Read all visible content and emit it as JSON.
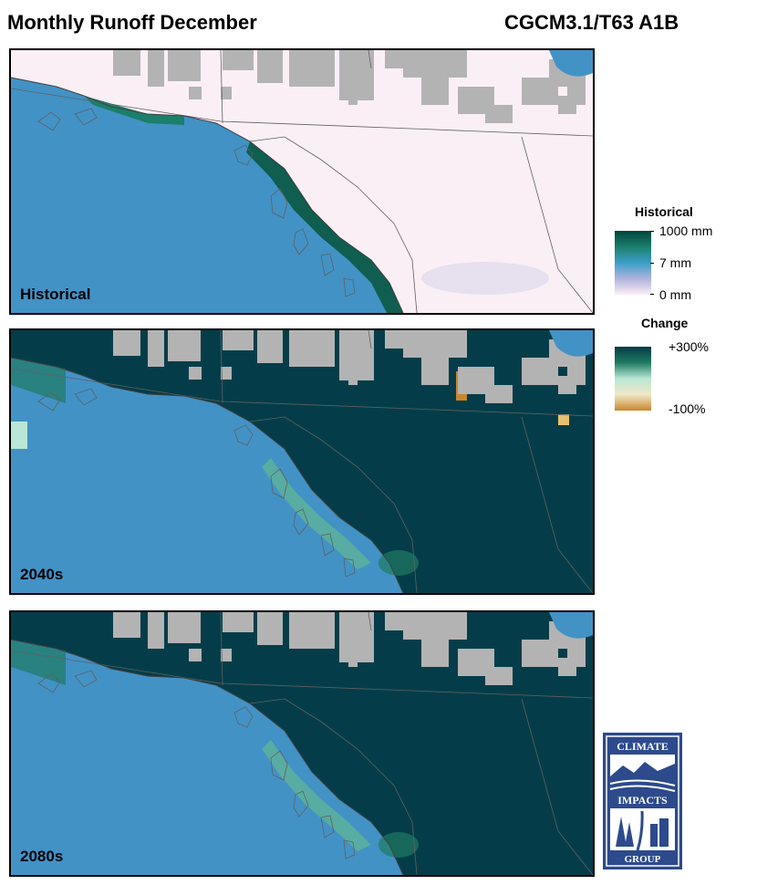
{
  "header": {
    "title": "Monthly Runoff December",
    "model": "CGCM3.1/T63 A1B"
  },
  "panels": [
    {
      "label": "Historical",
      "mode": "historical"
    },
    {
      "label": "2040s",
      "mode": "future"
    },
    {
      "label": "2080s",
      "mode": "future"
    }
  ],
  "legend": {
    "historical": {
      "title": "Historical",
      "max_label": "1000 mm",
      "mid_label": "7 mm",
      "min_label": "0 mm",
      "colors": [
        "#00443c",
        "#1b7f6b",
        "#3b9fc8",
        "#b0b3dc",
        "#fbeff6"
      ]
    },
    "change": {
      "title": "Change",
      "max_label": "+300%",
      "min_label": "-100%",
      "colors": [
        "#053a45",
        "#1f7a62",
        "#b9e6d6",
        "#f1e8c8",
        "#c8862c"
      ]
    }
  },
  "colors": {
    "ocean": "#4292c6",
    "no_data": "#b3b3b3",
    "land_dry": "#fbeff6",
    "deep_teal": "#043d49",
    "border": "#606060"
  },
  "logo": {
    "line1": "CLIMATE",
    "line2": "IMPACTS",
    "line3": "GROUP",
    "color": "#2d4a8c"
  }
}
